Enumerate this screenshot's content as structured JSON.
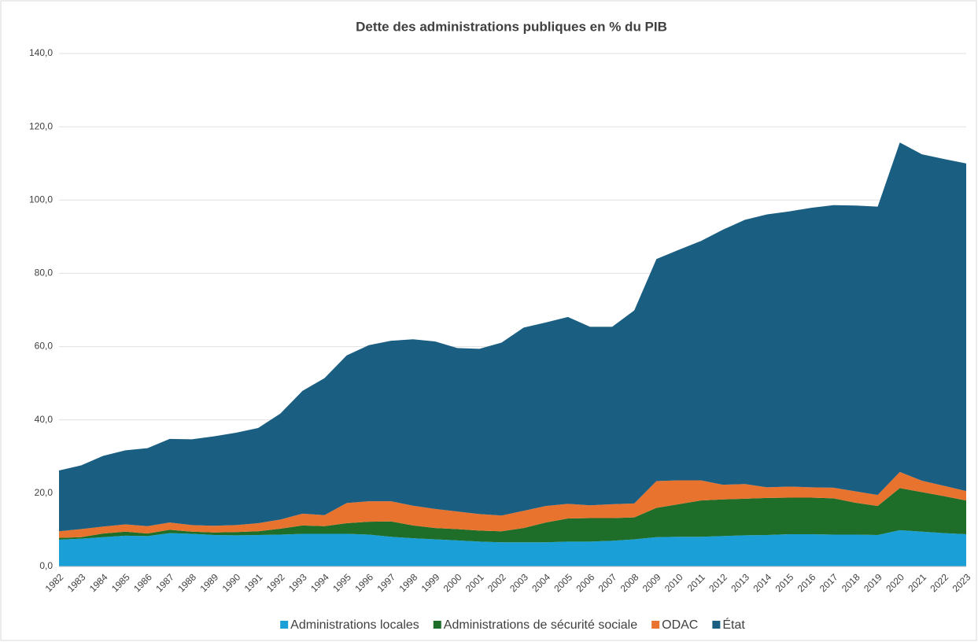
{
  "chart_data": {
    "type": "stacked_area",
    "title": "Dette des administrations publiques en % du PIB",
    "categories": [
      "1982",
      "1983",
      "1984",
      "1985",
      "1986",
      "1987",
      "1988",
      "1989",
      "1990",
      "1991",
      "1992",
      "1993",
      "1994",
      "1995",
      "1996",
      "1997",
      "1998",
      "1999",
      "2000",
      "2001",
      "2002",
      "2003",
      "2004",
      "2005",
      "2006",
      "2007",
      "2008",
      "2009",
      "2010",
      "2011",
      "2012",
      "2013",
      "2014",
      "2015",
      "2016",
      "2017",
      "2018",
      "2019",
      "2020",
      "2021",
      "2022",
      "2023"
    ],
    "series": [
      {
        "name": "Administrations locales",
        "color": "#1a9fd6",
        "values": [
          7.3,
          7.6,
          8.0,
          8.4,
          8.3,
          9.1,
          8.9,
          8.6,
          8.5,
          8.6,
          8.7,
          8.9,
          8.9,
          8.9,
          8.7,
          8.1,
          7.7,
          7.4,
          7.1,
          6.8,
          6.6,
          6.6,
          6.6,
          6.8,
          6.8,
          7.0,
          7.4,
          8.0,
          8.1,
          8.1,
          8.3,
          8.5,
          8.6,
          8.8,
          8.8,
          8.7,
          8.7,
          8.6,
          9.9,
          9.5,
          9.1,
          8.8
        ]
      },
      {
        "name": "Administrations de sécurité sociale",
        "color": "#1e6e2a",
        "values": [
          0.5,
          0.4,
          1.0,
          1.1,
          0.7,
          0.9,
          0.6,
          0.7,
          0.9,
          1.0,
          1.6,
          2.3,
          2.1,
          2.9,
          3.5,
          4.2,
          3.5,
          3.1,
          3.1,
          3.0,
          3.0,
          3.9,
          5.4,
          6.3,
          6.4,
          6.2,
          6.0,
          8.0,
          8.9,
          9.9,
          10.0,
          10.0,
          10.1,
          10.0,
          10.0,
          9.9,
          8.7,
          7.9,
          11.5,
          10.8,
          10.1,
          9.2
        ]
      },
      {
        "name": "ODAC",
        "color": "#e8732e",
        "values": [
          1.8,
          2.2,
          1.9,
          2.0,
          2.0,
          2.0,
          1.8,
          1.8,
          1.9,
          2.2,
          2.5,
          3.2,
          3.0,
          5.5,
          5.6,
          5.5,
          5.4,
          5.2,
          4.8,
          4.5,
          4.3,
          4.7,
          4.5,
          4.0,
          3.5,
          3.8,
          3.8,
          7.3,
          6.5,
          5.5,
          4.0,
          4.0,
          2.9,
          3.0,
          2.8,
          2.9,
          3.1,
          3.0,
          4.4,
          3.1,
          2.8,
          2.6
        ]
      },
      {
        "name": "État",
        "color": "#1a5e82",
        "values": [
          16.6,
          17.4,
          19.3,
          20.2,
          21.3,
          22.8,
          23.4,
          24.4,
          25.2,
          26.0,
          28.9,
          33.5,
          37.4,
          40.3,
          42.6,
          43.8,
          45.4,
          45.7,
          44.6,
          45.1,
          47.2,
          50.0,
          50.1,
          51.0,
          48.7,
          48.4,
          52.7,
          60.6,
          62.9,
          65.3,
          69.6,
          72.1,
          74.5,
          75.1,
          76.3,
          77.1,
          78.0,
          78.7,
          89.9,
          89.1,
          89.2,
          89.4
        ]
      }
    ],
    "ylim": [
      0,
      140
    ],
    "yticks": [
      {
        "value": 0,
        "label": "0,0"
      },
      {
        "value": 20,
        "label": "20,0"
      },
      {
        "value": 40,
        "label": "40,0"
      },
      {
        "value": 60,
        "label": "60,0"
      },
      {
        "value": 80,
        "label": "80,0"
      },
      {
        "value": 100,
        "label": "100,0"
      },
      {
        "value": 120,
        "label": "120,0"
      },
      {
        "value": 140,
        "label": "140,0"
      }
    ],
    "grid": true,
    "legend": "bottom"
  }
}
